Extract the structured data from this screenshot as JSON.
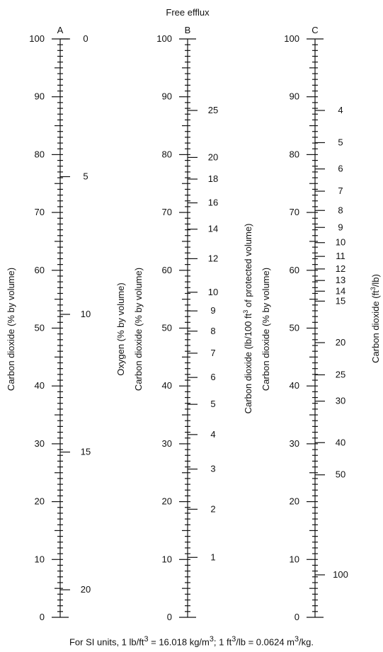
{
  "header": {
    "title": "Free efflux"
  },
  "scales": [
    {
      "letter": "A",
      "left_label": "Carbon dioxide (% by volume)",
      "left_ticks": [
        "100",
        "90",
        "80",
        "70",
        "60",
        "50",
        "40",
        "30",
        "20",
        "10",
        "0"
      ],
      "right_label": "Oxygen (% by volume)",
      "right_ticks": [
        {
          "label": "0",
          "value": 0
        },
        {
          "label": "5",
          "value": 5
        },
        {
          "label": "10",
          "value": 10
        },
        {
          "label": "15",
          "value": 15
        },
        {
          "label": "20",
          "value": 20
        }
      ]
    },
    {
      "letter": "B",
      "left_label": "Carbon dioxide (% by volume)",
      "left_ticks": [
        "100",
        "90",
        "80",
        "70",
        "60",
        "50",
        "40",
        "30",
        "20",
        "10",
        "0"
      ],
      "right_label_pre": "Carbon dioxide (lb/100 ft",
      "right_label_sup": "3",
      "right_label_post": " of protected volume)",
      "right_ticks": [
        {
          "label": "25",
          "value": 25
        },
        {
          "label": "20",
          "value": 20
        },
        {
          "label": "18",
          "value": 18
        },
        {
          "label": "16",
          "value": 16
        },
        {
          "label": "14",
          "value": 14
        },
        {
          "label": "12",
          "value": 12
        },
        {
          "label": "10",
          "value": 10
        },
        {
          "label": "9",
          "value": 9
        },
        {
          "label": "8",
          "value": 8
        },
        {
          "label": "7",
          "value": 7
        },
        {
          "label": "6",
          "value": 6
        },
        {
          "label": "5",
          "value": 5
        },
        {
          "label": "4",
          "value": 4
        },
        {
          "label": "3",
          "value": 3
        },
        {
          "label": "2",
          "value": 2
        },
        {
          "label": "1",
          "value": 1
        }
      ]
    },
    {
      "letter": "C",
      "left_label": "Carbon dioxide (% by volume)",
      "left_ticks": [
        "100",
        "90",
        "80",
        "70",
        "60",
        "50",
        "40",
        "30",
        "20",
        "10",
        "0"
      ],
      "right_label_pre": "Carbon dioxide (ft",
      "right_label_sup": "3",
      "right_label_post": "/lb)",
      "right_ticks": [
        {
          "label": "4",
          "value": 4
        },
        {
          "label": "5",
          "value": 5
        },
        {
          "label": "6",
          "value": 6
        },
        {
          "label": "7",
          "value": 7
        },
        {
          "label": "8",
          "value": 8
        },
        {
          "label": "9",
          "value": 9
        },
        {
          "label": "10",
          "value": 10
        },
        {
          "label": "11",
          "value": 11
        },
        {
          "label": "12",
          "value": 12
        },
        {
          "label": "13",
          "value": 13
        },
        {
          "label": "14",
          "value": 14
        },
        {
          "label": "15",
          "value": 15
        },
        {
          "label": "20",
          "value": 20
        },
        {
          "label": "25",
          "value": 25
        },
        {
          "label": "30",
          "value": 30
        },
        {
          "label": "40",
          "value": 40
        },
        {
          "label": "50",
          "value": 50
        },
        {
          "label": "100",
          "value": 100
        }
      ]
    }
  ],
  "footnote": {
    "p1": "For SI units, 1 lb/ft",
    "s1": "3",
    "p2": " = 16.018 kg/m",
    "s2": "3",
    "p3": "; 1 ft",
    "s3": "3",
    "p4": "/lb = 0.0624 m",
    "s4": "3",
    "p5": "/kg."
  }
}
